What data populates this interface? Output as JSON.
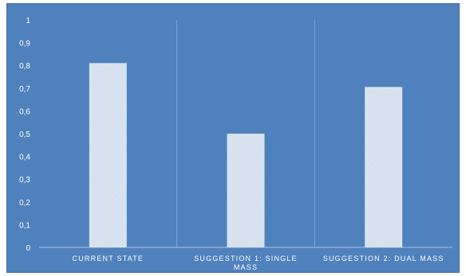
{
  "chart_data": {
    "type": "bar",
    "title": "",
    "xlabel": "",
    "ylabel": "",
    "categories": [
      [
        "CURRENT STATE"
      ],
      [
        "SUGGESTION 1: SINGLE",
        "MASS"
      ],
      [
        "SUGGESTION 2: DUAL MASS"
      ]
    ],
    "values": [
      0.81,
      0.5,
      0.705
    ],
    "ylim": [
      0,
      1
    ],
    "yticks": [
      "0",
      "0,1",
      "0,2",
      "0,3",
      "0,4",
      "0,5",
      "0,6",
      "0,7",
      "0,8",
      "0,9",
      "1"
    ],
    "grid": false,
    "legend": "none",
    "colors": {
      "background": "#4f81bd",
      "bar": "#dbe5f1",
      "bar_hatch": "#c6d4e8",
      "axis": "#a9c0de",
      "text": "#ffffff"
    }
  }
}
